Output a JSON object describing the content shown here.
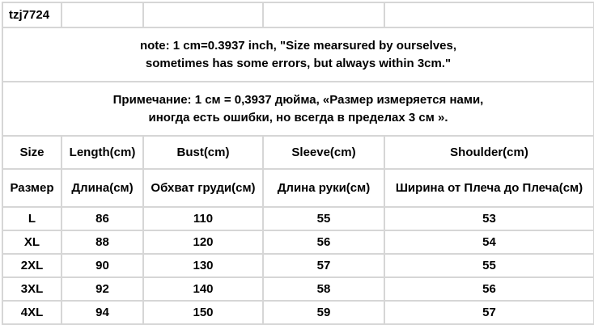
{
  "sku": "tzj7724",
  "note_en": [
    "note: 1 cm=0.3937 inch, \"Size mearsured by ourselves,",
    "sometimes has some errors, but always within 3cm.\""
  ],
  "note_ru": [
    "Примечание: 1 см = 0,3937 дюйма, «Размер измеряется нами,",
    "иногда есть ошибки, но всегда в пределах 3 см »."
  ],
  "headers_en": [
    "Size",
    "Length(cm)",
    "Bust(cm)",
    "Sleeve(cm)",
    "Shoulder(cm)"
  ],
  "headers_ru": [
    "Размер",
    "Длина(см)",
    "Обхват груди(см)",
    "Длина руки(см)",
    "Ширина от Плеча до Плеча(см)"
  ],
  "rows": [
    [
      "L",
      "86",
      "110",
      "55",
      "53"
    ],
    [
      "XL",
      "88",
      "120",
      "56",
      "54"
    ],
    [
      "2XL",
      "90",
      "130",
      "57",
      "55"
    ],
    [
      "3XL",
      "92",
      "140",
      "58",
      "56"
    ],
    [
      "4XL",
      "94",
      "150",
      "59",
      "57"
    ]
  ]
}
